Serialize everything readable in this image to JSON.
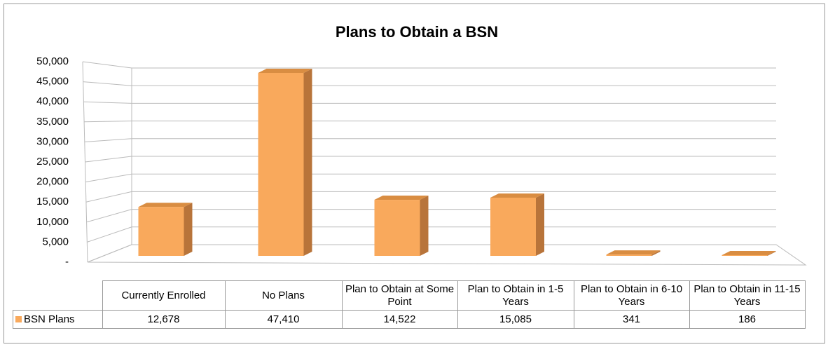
{
  "chart_data": {
    "type": "bar3d",
    "title": "Plans to Obtain a BSN",
    "categories": [
      "Currently Enrolled",
      "No Plans",
      "Plan to Obtain at Some Point",
      "Plan to Obtain in 1-5 Years",
      "Plan to Obtain in 6-10 Years",
      "Plan to Obtain in 11-15 Years"
    ],
    "series": [
      {
        "name": "BSN Plans",
        "color": "#f9a95c",
        "values": [
          12678,
          47410,
          14522,
          15085,
          341,
          186
        ],
        "value_labels": [
          "12,678",
          "47,410",
          "14,522",
          "15,085",
          "341",
          "186"
        ]
      }
    ],
    "ylim": [
      0,
      50000
    ],
    "yticks": [
      {
        "value": 0,
        "label": "-"
      },
      {
        "value": 5000,
        "label": "5,000"
      },
      {
        "value": 10000,
        "label": "10,000"
      },
      {
        "value": 15000,
        "label": "15,000"
      },
      {
        "value": 20000,
        "label": "20,000"
      },
      {
        "value": 25000,
        "label": "25,000"
      },
      {
        "value": 30000,
        "label": "30,000"
      },
      {
        "value": 35000,
        "label": "35,000"
      },
      {
        "value": 40000,
        "label": "40,000"
      },
      {
        "value": 45000,
        "label": "45,000"
      },
      {
        "value": 50000,
        "label": "50,000"
      }
    ],
    "grid": true,
    "data_table": true
  }
}
